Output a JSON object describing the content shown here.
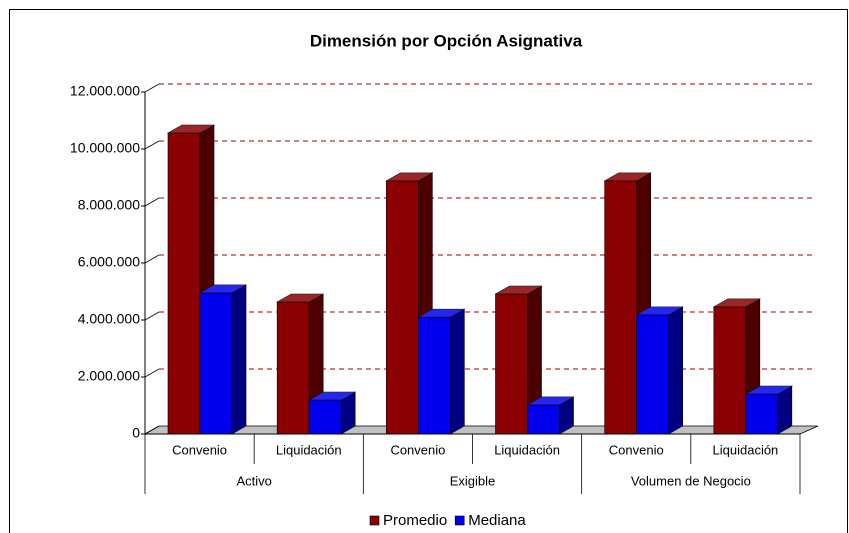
{
  "chart_data": {
    "type": "bar3d",
    "title": "Dimensión por Opción Asignativa",
    "categories": [
      "Convenio",
      "Liquidación",
      "Convenio",
      "Liquidación",
      "Convenio",
      "Liquidación"
    ],
    "groups": [
      "Activo",
      "Exigible",
      "Volumen de Negocio"
    ],
    "series": [
      {
        "name": "Promedio",
        "color": "#8b0000",
        "values": [
          10560000,
          4630000,
          8880000,
          4910000,
          8880000,
          4460000
        ]
      },
      {
        "name": "Mediana",
        "color": "#0000ee",
        "values": [
          4950000,
          1190000,
          4100000,
          1020000,
          4180000,
          1400000
        ]
      }
    ],
    "ylim": [
      0,
      12000000
    ],
    "yticks": [
      0,
      {
        "value": 2000000,
        "label": "2.000.000"
      },
      {
        "value": 4000000,
        "label": "4.000.000"
      },
      {
        "value": 6000000,
        "label": "6.000.000"
      },
      {
        "value": 8000000,
        "label": "8.000.000"
      },
      {
        "value": 10000000,
        "label": "10.000.000"
      },
      {
        "value": 12000000,
        "label": "12.000.000"
      }
    ],
    "grid": true,
    "legend": "bottom"
  }
}
